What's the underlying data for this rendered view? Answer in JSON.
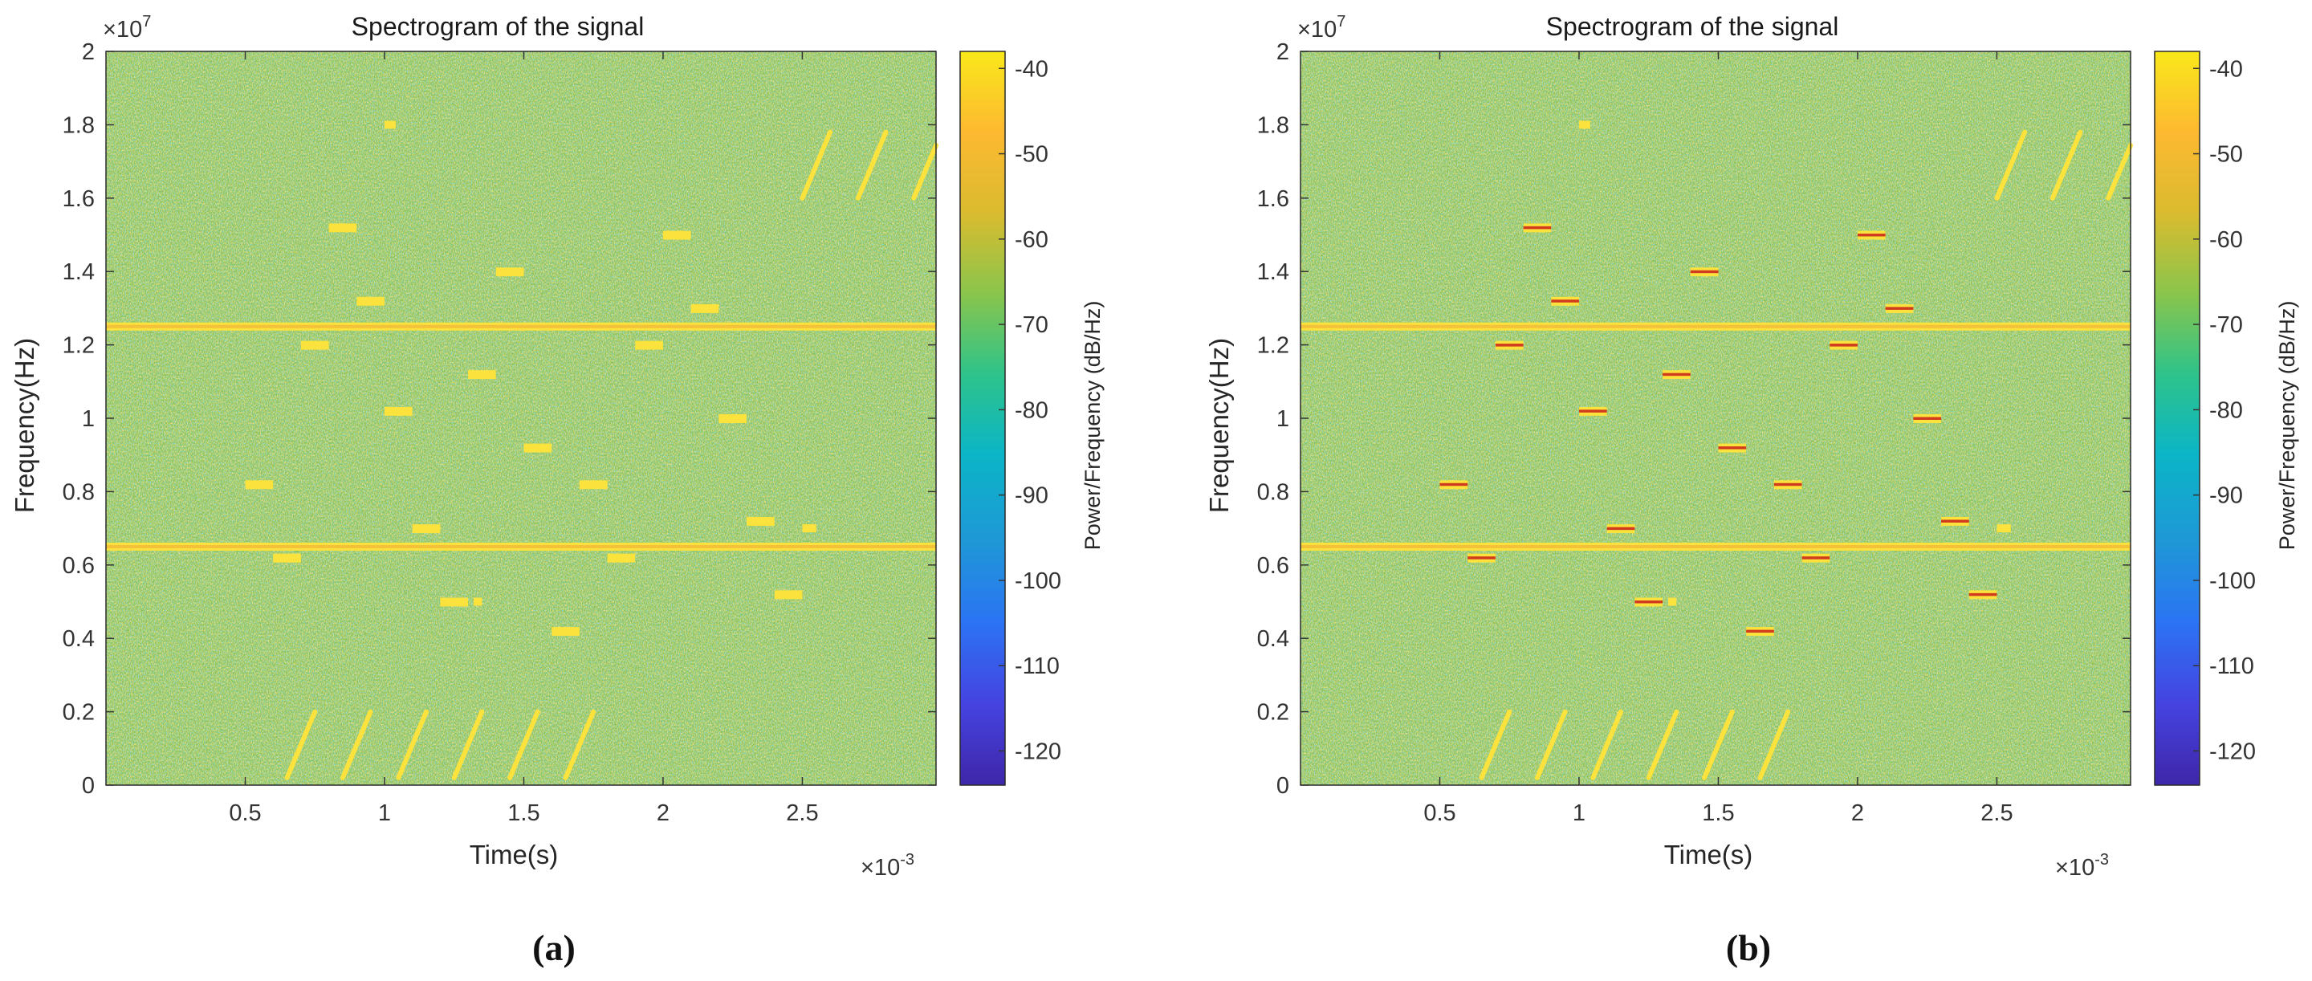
{
  "panels": [
    {
      "label": "(a)",
      "title": "Spectrogram of the signal",
      "xlabel": "Time(s)",
      "ylabel": "Frequency(Hz)",
      "colorbar_label": "Power/Frequency (dB/Hz)",
      "y_exponent": "×10",
      "y_exponent_power": "7",
      "x_exponent": "×10",
      "x_exponent_power": "-3",
      "outlined_segments": false
    },
    {
      "label": "(b)",
      "title": "Spectrogram of the signal",
      "xlabel": "Time(s)",
      "ylabel": "Frequency(Hz)",
      "colorbar_label": "Power/Frequency (dB/Hz)",
      "y_exponent": "×10",
      "y_exponent_power": "7",
      "x_exponent": "×10",
      "x_exponent_power": "-3",
      "outlined_segments": true
    }
  ],
  "colors": {
    "background_green": "#8cc25a",
    "noise_yellow": "#d8bd3c",
    "noise_cyan": "#3fb6b0",
    "signal_yellow": "#fbe23d",
    "signal_edge_red": "#d03a1e"
  },
  "chart_data": {
    "type": "heatmap",
    "title": "Spectrogram of the signal",
    "xlabel": "Time(s)",
    "ylabel": "Frequency(Hz)",
    "xlim": [
      0.0,
      2.98
    ],
    "ylim": [
      0.0,
      2.0
    ],
    "x_multiplier": "1e-3",
    "y_multiplier": "1e7",
    "xticks": [
      0.5,
      1,
      1.5,
      2,
      2.5
    ],
    "xtick_labels": [
      "0.5",
      "1",
      "1.5",
      "2",
      "2.5"
    ],
    "yticks": [
      0,
      0.2,
      0.4,
      0.6,
      0.8,
      1,
      1.2,
      1.4,
      1.6,
      1.8,
      2
    ],
    "ytick_labels": [
      "0",
      "0.2",
      "0.4",
      "0.6",
      "0.8",
      "1",
      "1.2",
      "1.4",
      "1.6",
      "1.8",
      "2"
    ],
    "colorbar": {
      "label": "Power/Frequency (dB/Hz)",
      "range": [
        -124,
        -38
      ],
      "ticks": [
        -40,
        -50,
        -60,
        -70,
        -80,
        -90,
        -100,
        -110,
        -120
      ],
      "tick_labels": [
        "-40",
        "-50",
        "-60",
        "-70",
        "-80",
        "-90",
        "-100",
        "-110",
        "-120"
      ],
      "colormap": [
        "#3e26a8",
        "#4543e0",
        "#2c73f4",
        "#1f97d7",
        "#0bb5c7",
        "#2ec38a",
        "#8ac54b",
        "#dabb2f",
        "#fdb931",
        "#f9e81a"
      ]
    },
    "constant_tones_freq": [
      1.25,
      0.65
    ],
    "hopping_segments": [
      {
        "t0": 0.5,
        "t1": 0.6,
        "f": 0.82
      },
      {
        "t0": 0.6,
        "t1": 0.7,
        "f": 0.62
      },
      {
        "t0": 0.7,
        "t1": 0.8,
        "f": 1.2
      },
      {
        "t0": 0.8,
        "t1": 0.9,
        "f": 1.52
      },
      {
        "t0": 0.9,
        "t1": 1.0,
        "f": 1.32
      },
      {
        "t0": 1.0,
        "t1": 1.1,
        "f": 1.02
      },
      {
        "t0": 1.1,
        "t1": 1.2,
        "f": 0.7
      },
      {
        "t0": 1.2,
        "t1": 1.3,
        "f": 0.5
      },
      {
        "t0": 1.3,
        "t1": 1.4,
        "f": 1.12
      },
      {
        "t0": 1.4,
        "t1": 1.5,
        "f": 1.4
      },
      {
        "t0": 1.5,
        "t1": 1.6,
        "f": 0.92
      },
      {
        "t0": 1.6,
        "t1": 1.7,
        "f": 0.42
      },
      {
        "t0": 1.7,
        "t1": 1.8,
        "f": 0.82
      },
      {
        "t0": 1.8,
        "t1": 1.9,
        "f": 0.62
      },
      {
        "t0": 1.9,
        "t1": 2.0,
        "f": 1.2
      },
      {
        "t0": 2.0,
        "t1": 2.1,
        "f": 1.5
      },
      {
        "t0": 2.1,
        "t1": 2.2,
        "f": 1.3
      },
      {
        "t0": 2.2,
        "t1": 2.3,
        "f": 1.0
      },
      {
        "t0": 2.3,
        "t1": 2.4,
        "f": 0.72
      },
      {
        "t0": 2.4,
        "t1": 2.5,
        "f": 0.52
      }
    ],
    "short_marks": [
      {
        "t0": 1.0,
        "t1": 1.04,
        "f": 1.8
      },
      {
        "t0": 1.32,
        "t1": 1.35,
        "f": 0.5
      },
      {
        "t0": 2.5,
        "t1": 2.55,
        "f": 0.7
      }
    ],
    "chirps": [
      {
        "t0": 0.65,
        "f0": 0.02,
        "t1": 0.75,
        "f1": 0.2
      },
      {
        "t0": 0.85,
        "f0": 0.02,
        "t1": 0.95,
        "f1": 0.2
      },
      {
        "t0": 1.05,
        "f0": 0.02,
        "t1": 1.15,
        "f1": 0.2
      },
      {
        "t0": 1.25,
        "f0": 0.02,
        "t1": 1.35,
        "f1": 0.2
      },
      {
        "t0": 1.45,
        "f0": 0.02,
        "t1": 1.55,
        "f1": 0.2
      },
      {
        "t0": 1.65,
        "f0": 0.02,
        "t1": 1.75,
        "f1": 0.2
      },
      {
        "t0": 2.5,
        "f0": 1.6,
        "t1": 2.6,
        "f1": 1.78
      },
      {
        "t0": 2.7,
        "f0": 1.6,
        "t1": 2.8,
        "f1": 1.78
      },
      {
        "t0": 2.9,
        "f0": 1.6,
        "t1": 3.0,
        "f1": 1.78
      }
    ]
  }
}
